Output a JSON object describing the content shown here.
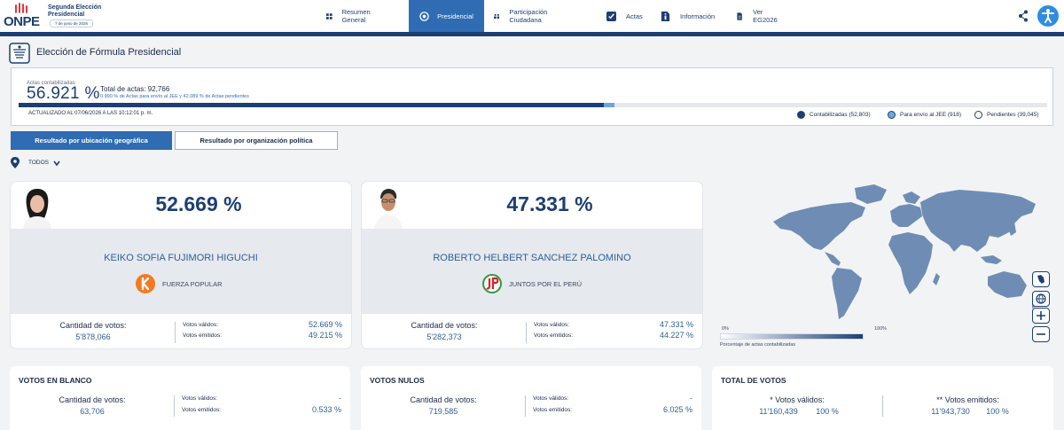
{
  "brand": {
    "name": "ONPE",
    "title_line1": "Segunda Elección",
    "title_line2": "Presidencial",
    "date": "7 de junio de 2026"
  },
  "nav": {
    "items": [
      {
        "label": "Resumen General",
        "icon": "grid-icon"
      },
      {
        "label": "Presidencial",
        "icon": "seal-icon"
      },
      {
        "label": "Participación Ciudadana",
        "icon": "people-icon"
      },
      {
        "label": "Actas",
        "icon": "checkbox-icon"
      },
      {
        "label": "Información",
        "icon": "document-info-icon"
      },
      {
        "label": "Ver EG2026",
        "icon": "document-icon"
      }
    ],
    "active_index": 1
  },
  "page_title": "Elección de Fórmula Presidencial",
  "summary": {
    "label": "Actas contabilizadas",
    "percent": "56.921 %",
    "total_label": "Total de actas: 92,766",
    "note": "0.990 % de Actas para envío al JEE y 42.089 % de Actas pendientes",
    "updated": "ACTUALIZADO AL 07/06/2026 A LAS 10:12:01 p. m.",
    "progress": {
      "contabilizadas_pct": 56.921,
      "jee_pct": 0.99
    },
    "legend": [
      {
        "label": "Contabilizadas (52,803)",
        "color": "#1c3f73"
      },
      {
        "label": "Para envío al JEE (918)",
        "color": "#6aa7dd"
      },
      {
        "label": "Pendientes (39,045)",
        "color": "#ffffff"
      }
    ]
  },
  "tabs": [
    "Resultado por ubicación geográfica",
    "Resultado por organización política"
  ],
  "filter": {
    "label": "TODOS"
  },
  "candidates": [
    {
      "percent": "52.669 %",
      "name": "KEIKO SOFIA FUJIMORI HIGUCHI",
      "party": "FUERZA POPULAR",
      "votes_label": "Cantidad de votos:",
      "votes": "5'878,066",
      "valid_label": "Votos válidos:",
      "valid": "52.669 %",
      "emitted_label": "Votos emitidos:",
      "emitted": "49.215 %"
    },
    {
      "percent": "47.331 %",
      "name": "ROBERTO HELBERT SANCHEZ PALOMINO",
      "party": "JUNTOS POR EL PERÚ",
      "votes_label": "Cantidad de votos:",
      "votes": "5'282,373",
      "valid_label": "Votos válidos:",
      "valid": "47.331 %",
      "emitted_label": "Votos emitidos:",
      "emitted": "44.227 %"
    }
  ],
  "map": {
    "scale_min": "0%",
    "scale_max": "100%",
    "caption": "Porcentaje de actas contabilizadas"
  },
  "blank": {
    "title": "VOTOS EN BLANCO",
    "votes_label": "Cantidad de votos:",
    "votes": "63,706",
    "valid_label": "Votos válidos:",
    "valid": "-",
    "emitted_label": "Votos emitidos:",
    "emitted": "0.533 %"
  },
  "null": {
    "title": "VOTOS NULOS",
    "votes_label": "Cantidad de votos:",
    "votes": "719,585",
    "valid_label": "Votos válidos:",
    "valid": "-",
    "emitted_label": "Votos emitidos:",
    "emitted": "6.025 %"
  },
  "total": {
    "title": "TOTAL DE VOTOS",
    "valid_label": "* Votos válidos:",
    "valid_count": "11'160,439",
    "valid_pct": "100 %",
    "emitted_label": "** Votos emitidos:",
    "emitted_count": "11'943,730",
    "emitted_pct": "100 %"
  }
}
